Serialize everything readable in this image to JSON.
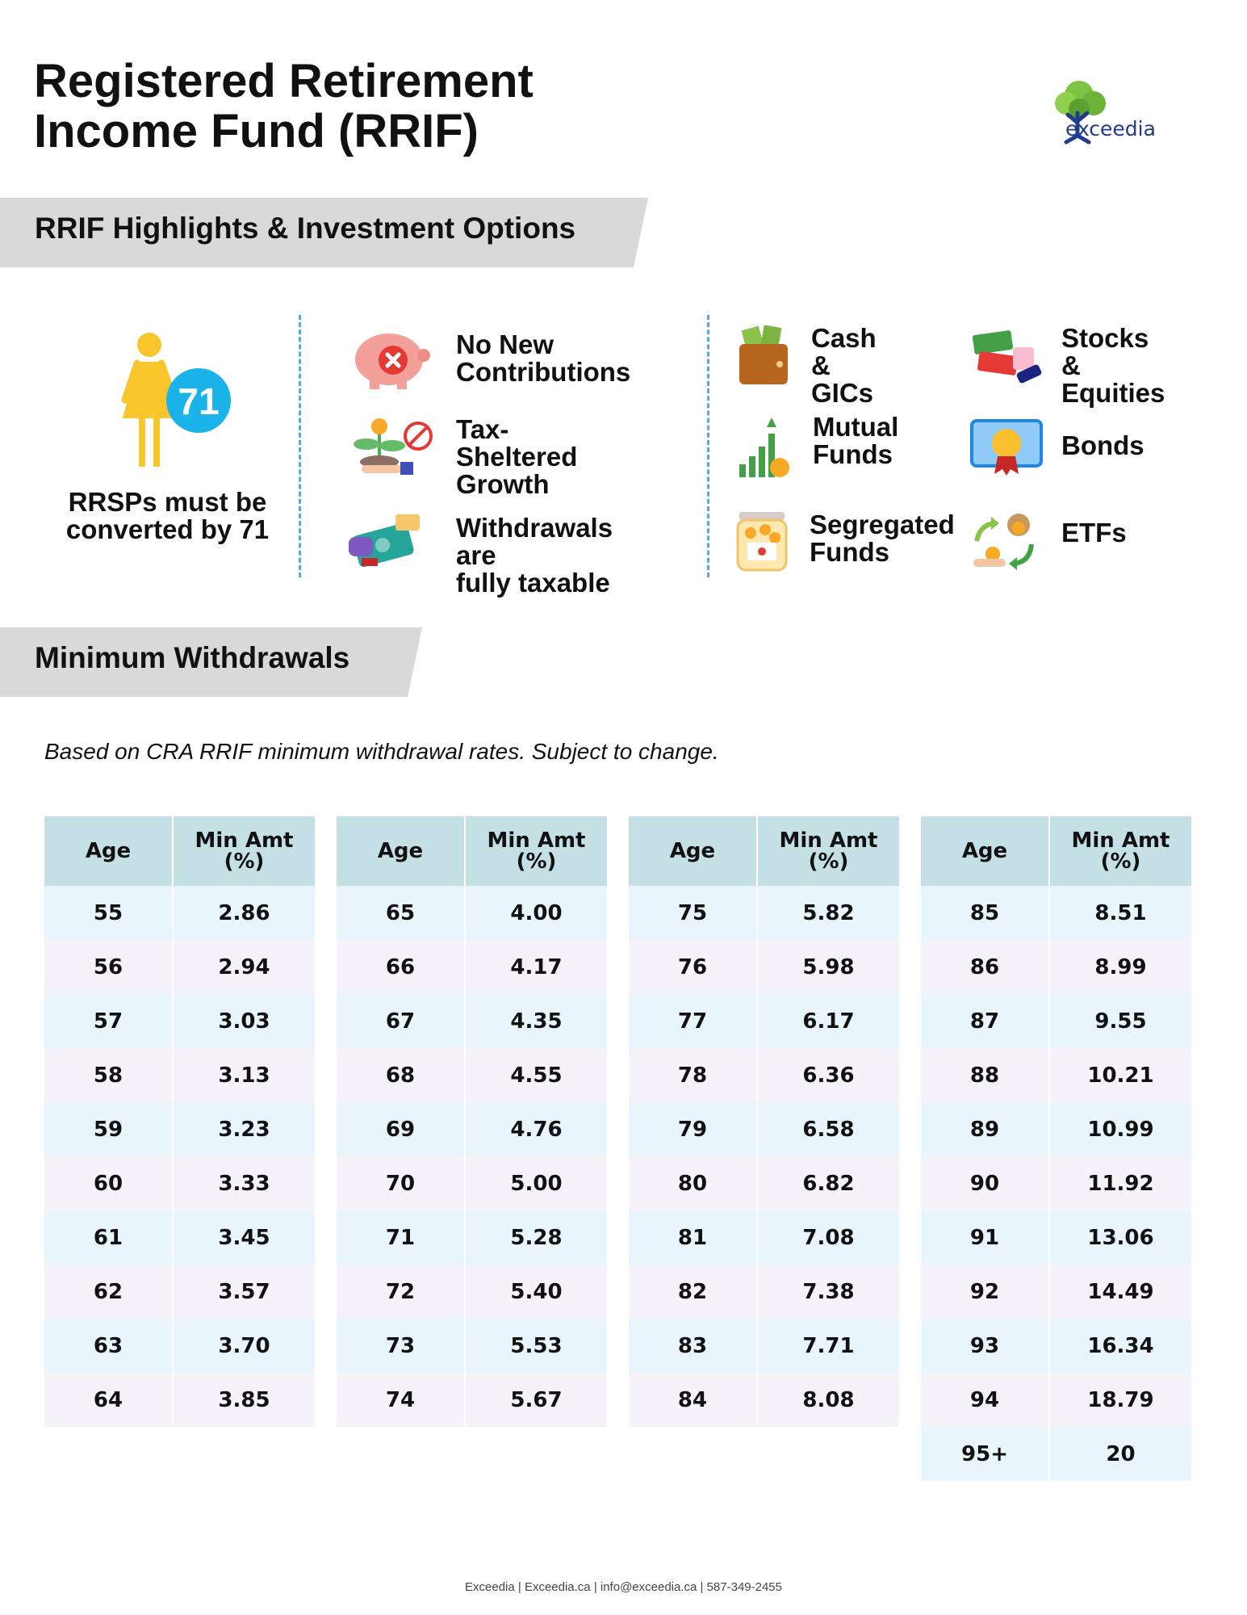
{
  "header": {
    "title_line1": "Registered Retirement",
    "title_line2": "Income Fund (RRIF)",
    "logo_text": "exceedia"
  },
  "highlights": {
    "banner": "RRIF Highlights & Investment Options",
    "age_badge": "71",
    "convert_line1": "RRSPs must be",
    "convert_line2": "converted by 71",
    "items": [
      {
        "icon": "piggy-bank-cross-icon",
        "line1": "No New",
        "line2": "Contributions"
      },
      {
        "icon": "plant-tax-icon",
        "line1": "Tax-Sheltered",
        "line2": "Growth"
      },
      {
        "icon": "cash-withdrawal-icon",
        "line1": "Withdrawals are",
        "line2": "fully taxable"
      }
    ],
    "options": [
      {
        "icon": "wallet-cash-icon",
        "line1": "Cash &",
        "line2": "GICs"
      },
      {
        "icon": "stocks-buy-sell-icon",
        "line1": "Stocks &",
        "line2": "Equities"
      },
      {
        "icon": "growth-chart-icon",
        "line1": "Mutual",
        "line2": "Funds"
      },
      {
        "icon": "bond-certificate-icon",
        "line1": "Bonds",
        "line2": ""
      },
      {
        "icon": "coin-jar-icon",
        "line1": "Segregated",
        "line2": "Funds"
      },
      {
        "icon": "money-exchange-icon",
        "line1": "ETFs",
        "line2": ""
      }
    ]
  },
  "withdrawals": {
    "banner": "Minimum Withdrawals",
    "note": "Based on CRA RRIF minimum withdrawal rates. Subject to change.",
    "col_age": "Age",
    "col_min_line1": "Min Amt",
    "col_min_line2": "(%)",
    "tables": [
      [
        [
          "55",
          "2.86"
        ],
        [
          "56",
          "2.94"
        ],
        [
          "57",
          "3.03"
        ],
        [
          "58",
          "3.13"
        ],
        [
          "59",
          "3.23"
        ],
        [
          "60",
          "3.33"
        ],
        [
          "61",
          "3.45"
        ],
        [
          "62",
          "3.57"
        ],
        [
          "63",
          "3.70"
        ],
        [
          "64",
          "3.85"
        ]
      ],
      [
        [
          "65",
          "4.00"
        ],
        [
          "66",
          "4.17"
        ],
        [
          "67",
          "4.35"
        ],
        [
          "68",
          "4.55"
        ],
        [
          "69",
          "4.76"
        ],
        [
          "70",
          "5.00"
        ],
        [
          "71",
          "5.28"
        ],
        [
          "72",
          "5.40"
        ],
        [
          "73",
          "5.53"
        ],
        [
          "74",
          "5.67"
        ]
      ],
      [
        [
          "75",
          "5.82"
        ],
        [
          "76",
          "5.98"
        ],
        [
          "77",
          "6.17"
        ],
        [
          "78",
          "6.36"
        ],
        [
          "79",
          "6.58"
        ],
        [
          "80",
          "6.82"
        ],
        [
          "81",
          "7.08"
        ],
        [
          "82",
          "7.38"
        ],
        [
          "83",
          "7.71"
        ],
        [
          "84",
          "8.08"
        ]
      ],
      [
        [
          "85",
          "8.51"
        ],
        [
          "86",
          "8.99"
        ],
        [
          "87",
          "9.55"
        ],
        [
          "88",
          "10.21"
        ],
        [
          "89",
          "10.99"
        ],
        [
          "90",
          "11.92"
        ],
        [
          "91",
          "13.06"
        ],
        [
          "92",
          "14.49"
        ],
        [
          "93",
          "16.34"
        ],
        [
          "94",
          "18.79"
        ],
        [
          "95+",
          "20"
        ]
      ]
    ]
  },
  "footer": "Exceedia | Exceedia.ca | info@exceedia.ca | 587-349-2455",
  "colors": {
    "banner_bg": "#d9d9d9",
    "header_cell": "#c5e0e4",
    "row_blue": "#e9f5fc",
    "row_grey": "#f5f3f7",
    "badge": "#1ab3ea",
    "person": "#f7c52c",
    "divider": "#5aa9d6"
  }
}
